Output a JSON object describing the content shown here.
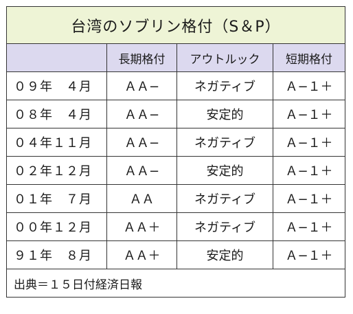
{
  "title": "台湾のソブリン格付（S＆P）",
  "headers": {
    "date": "",
    "long_term": "長期格付",
    "outlook": "アウトルック",
    "short_term": "短期格付"
  },
  "rows": [
    {
      "date": "０９年　４月",
      "long_term": "ＡＡ−",
      "outlook": "ネガティブ",
      "short_term": "Ａ−１＋"
    },
    {
      "date": "０８年　４月",
      "long_term": "ＡＡ−",
      "outlook": "安定的",
      "short_term": "Ａ−１＋"
    },
    {
      "date": "０４年１１月",
      "long_term": "ＡＡ−",
      "outlook": "ネガティブ",
      "short_term": "Ａ−１＋"
    },
    {
      "date": "０２年１２月",
      "long_term": "ＡＡ−",
      "outlook": "安定的",
      "short_term": "Ａ−１＋"
    },
    {
      "date": "０１年　７月",
      "long_term": "ＡＡ",
      "outlook": "ネガティブ",
      "short_term": "Ａ−１＋"
    },
    {
      "date": "００年１２月",
      "long_term": "ＡＡ＋",
      "outlook": "ネガティブ",
      "short_term": "Ａ−１＋"
    },
    {
      "date": "９１年　８月",
      "long_term": "ＡＡ＋",
      "outlook": "安定的",
      "short_term": "Ａ−１＋"
    }
  ],
  "footer": "出典＝１５日付経済日報",
  "colors": {
    "title_bg": "#eef4d6",
    "header_bg": "#dcd9ef",
    "border": "#333333"
  }
}
